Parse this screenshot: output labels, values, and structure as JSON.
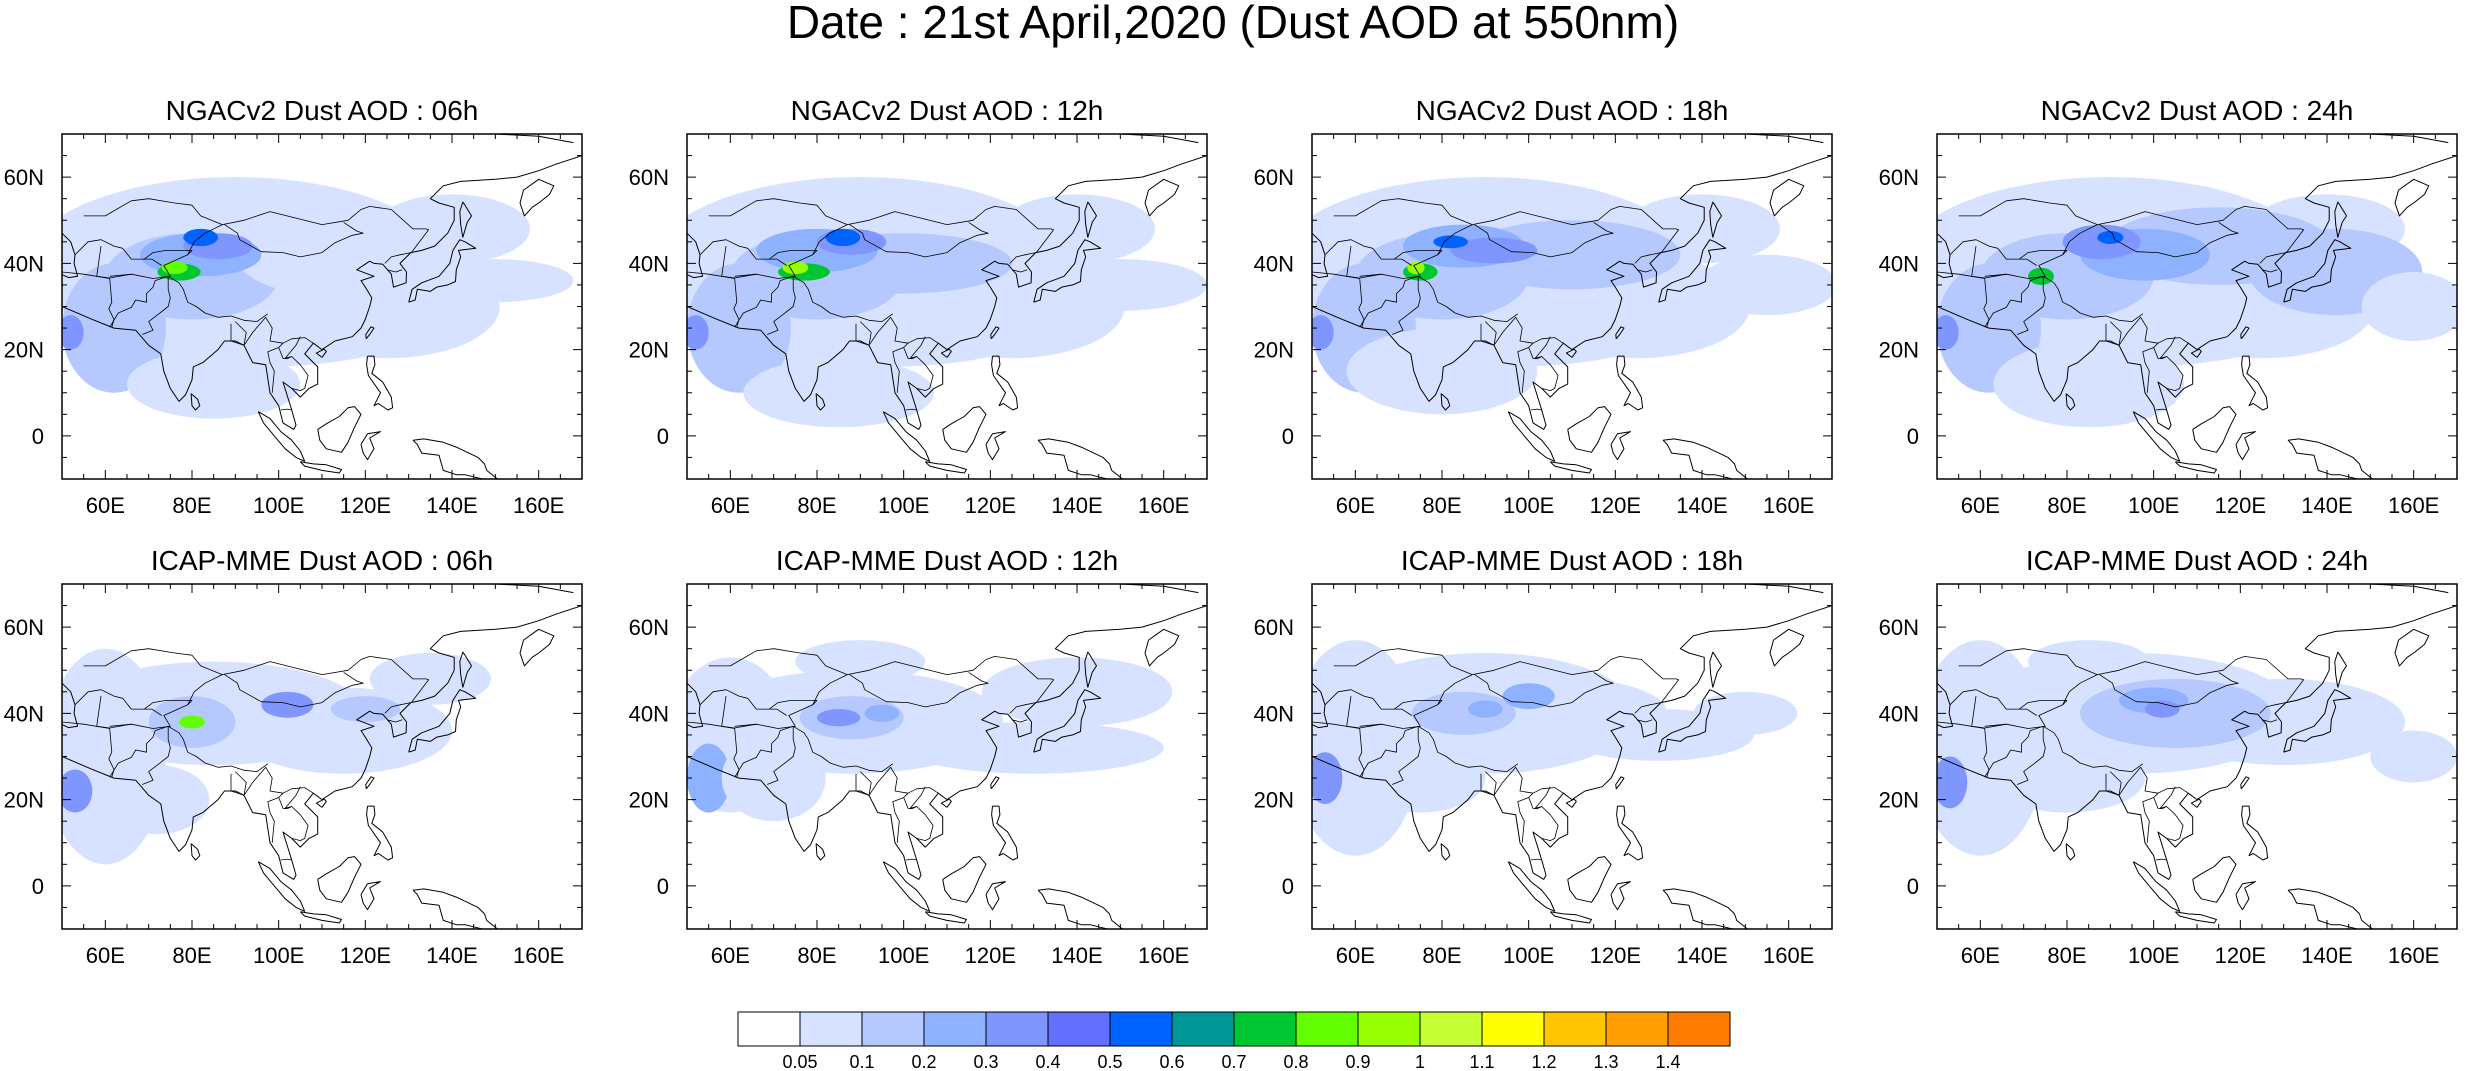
{
  "figure": {
    "title": "Date : 21st April,2020 (Dust AOD at 550nm)"
  },
  "panels": [
    {
      "title": "NGACv2 Dust AOD : 06h"
    },
    {
      "title": "NGACv2 Dust AOD : 12h"
    },
    {
      "title": "NGACv2 Dust AOD : 18h"
    },
    {
      "title": "NGACv2 Dust AOD : 24h"
    },
    {
      "title": "ICAP-MME Dust AOD : 06h"
    },
    {
      "title": "ICAP-MME Dust AOD : 12h"
    },
    {
      "title": "ICAP-MME Dust AOD : 18h"
    },
    {
      "title": "ICAP-MME Dust AOD : 24h"
    }
  ],
  "axes": {
    "lon_range": [
      50,
      170
    ],
    "lat_range": [
      -10,
      70
    ],
    "lon_ticks": [
      {
        "value": 60,
        "label": "60E"
      },
      {
        "value": 80,
        "label": "80E"
      },
      {
        "value": 100,
        "label": "100E"
      },
      {
        "value": 120,
        "label": "120E"
      },
      {
        "value": 140,
        "label": "140E"
      },
      {
        "value": 160,
        "label": "160E"
      }
    ],
    "lat_ticks": [
      {
        "value": 0,
        "label": "0"
      },
      {
        "value": 20,
        "label": "20N"
      },
      {
        "value": 40,
        "label": "40N"
      },
      {
        "value": 60,
        "label": "60N"
      }
    ]
  },
  "colorbar": {
    "colors": [
      "#ffffff",
      "#d6e2ff",
      "#b5c9ff",
      "#8eb2ff",
      "#7f96ff",
      "#6370ff",
      "#0063ff",
      "#009696",
      "#00c633",
      "#63ff00",
      "#96ff00",
      "#c6ff33",
      "#ffff00",
      "#ffc600",
      "#ffa000",
      "#ff7c00",
      "#ff1900"
    ],
    "labels": [
      "0.05",
      "0.1",
      "0.2",
      "0.3",
      "0.4",
      "0.5",
      "0.6",
      "0.7",
      "0.8",
      "0.9",
      "1",
      "1.1",
      "1.2",
      "1.3",
      "1.4"
    ]
  }
}
